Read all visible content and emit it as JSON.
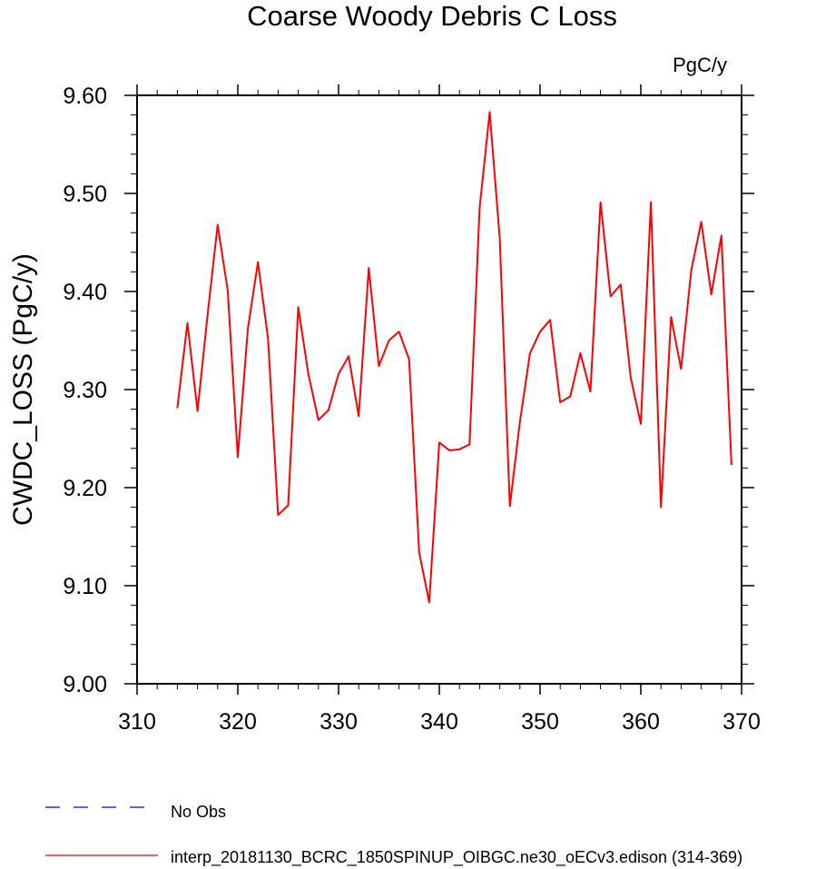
{
  "chart_data": {
    "type": "line",
    "title": "Coarse Woody Debris C Loss",
    "units_label": "PgC/y",
    "ylabel": "CWDC_LOSS  (PgC/y)",
    "xlabel": "",
    "xlim": [
      310,
      370
    ],
    "ylim": [
      9.0,
      9.6
    ],
    "x_ticks": [
      310,
      320,
      330,
      340,
      350,
      360,
      370
    ],
    "x_tick_labels": [
      "310",
      "320",
      "330",
      "340",
      "350",
      "360",
      "370"
    ],
    "y_ticks": [
      9.0,
      9.1,
      9.2,
      9.3,
      9.4,
      9.5,
      9.6
    ],
    "y_tick_labels": [
      "9.00",
      "9.10",
      "9.20",
      "9.30",
      "9.40",
      "9.50",
      "9.60"
    ],
    "grid": false,
    "legend_position": "bottom",
    "legend": [
      {
        "label": "No Obs",
        "color": "#0000ff",
        "style": "dashed"
      },
      {
        "label": "interp_20181130_BCRC_1850SPINUP_OIBGC.ne30_oECv3.edison (314-369)",
        "color": "#ff0000",
        "style": "solid"
      }
    ],
    "series": [
      {
        "name": "interp_20181130_BCRC_1850SPINUP_OIBGC.ne30_oECv3.edison (314-369)",
        "color": "#ff0000",
        "x": [
          314,
          315,
          316,
          317,
          318,
          319,
          320,
          321,
          322,
          323,
          324,
          325,
          326,
          327,
          328,
          329,
          330,
          331,
          332,
          333,
          334,
          335,
          336,
          337,
          338,
          339,
          340,
          341,
          342,
          343,
          344,
          345,
          346,
          347,
          348,
          349,
          350,
          351,
          352,
          353,
          354,
          355,
          356,
          357,
          358,
          359,
          360,
          361,
          362,
          363,
          364,
          365,
          366,
          367,
          368,
          369
        ],
        "y": [
          9.281,
          9.368,
          9.278,
          9.376,
          9.468,
          9.401,
          9.231,
          9.362,
          9.43,
          9.352,
          9.172,
          9.182,
          9.384,
          9.316,
          9.269,
          9.279,
          9.316,
          9.334,
          9.273,
          9.424,
          9.324,
          9.35,
          9.359,
          9.331,
          9.134,
          9.083,
          9.246,
          9.238,
          9.239,
          9.244,
          9.485,
          9.583,
          9.454,
          9.181,
          9.267,
          9.337,
          9.359,
          9.371,
          9.287,
          9.293,
          9.337,
          9.298,
          9.491,
          9.395,
          9.407,
          9.312,
          9.265,
          9.491,
          9.18,
          9.374,
          9.321,
          9.421,
          9.471,
          9.397,
          9.457,
          9.223
        ]
      }
    ]
  }
}
